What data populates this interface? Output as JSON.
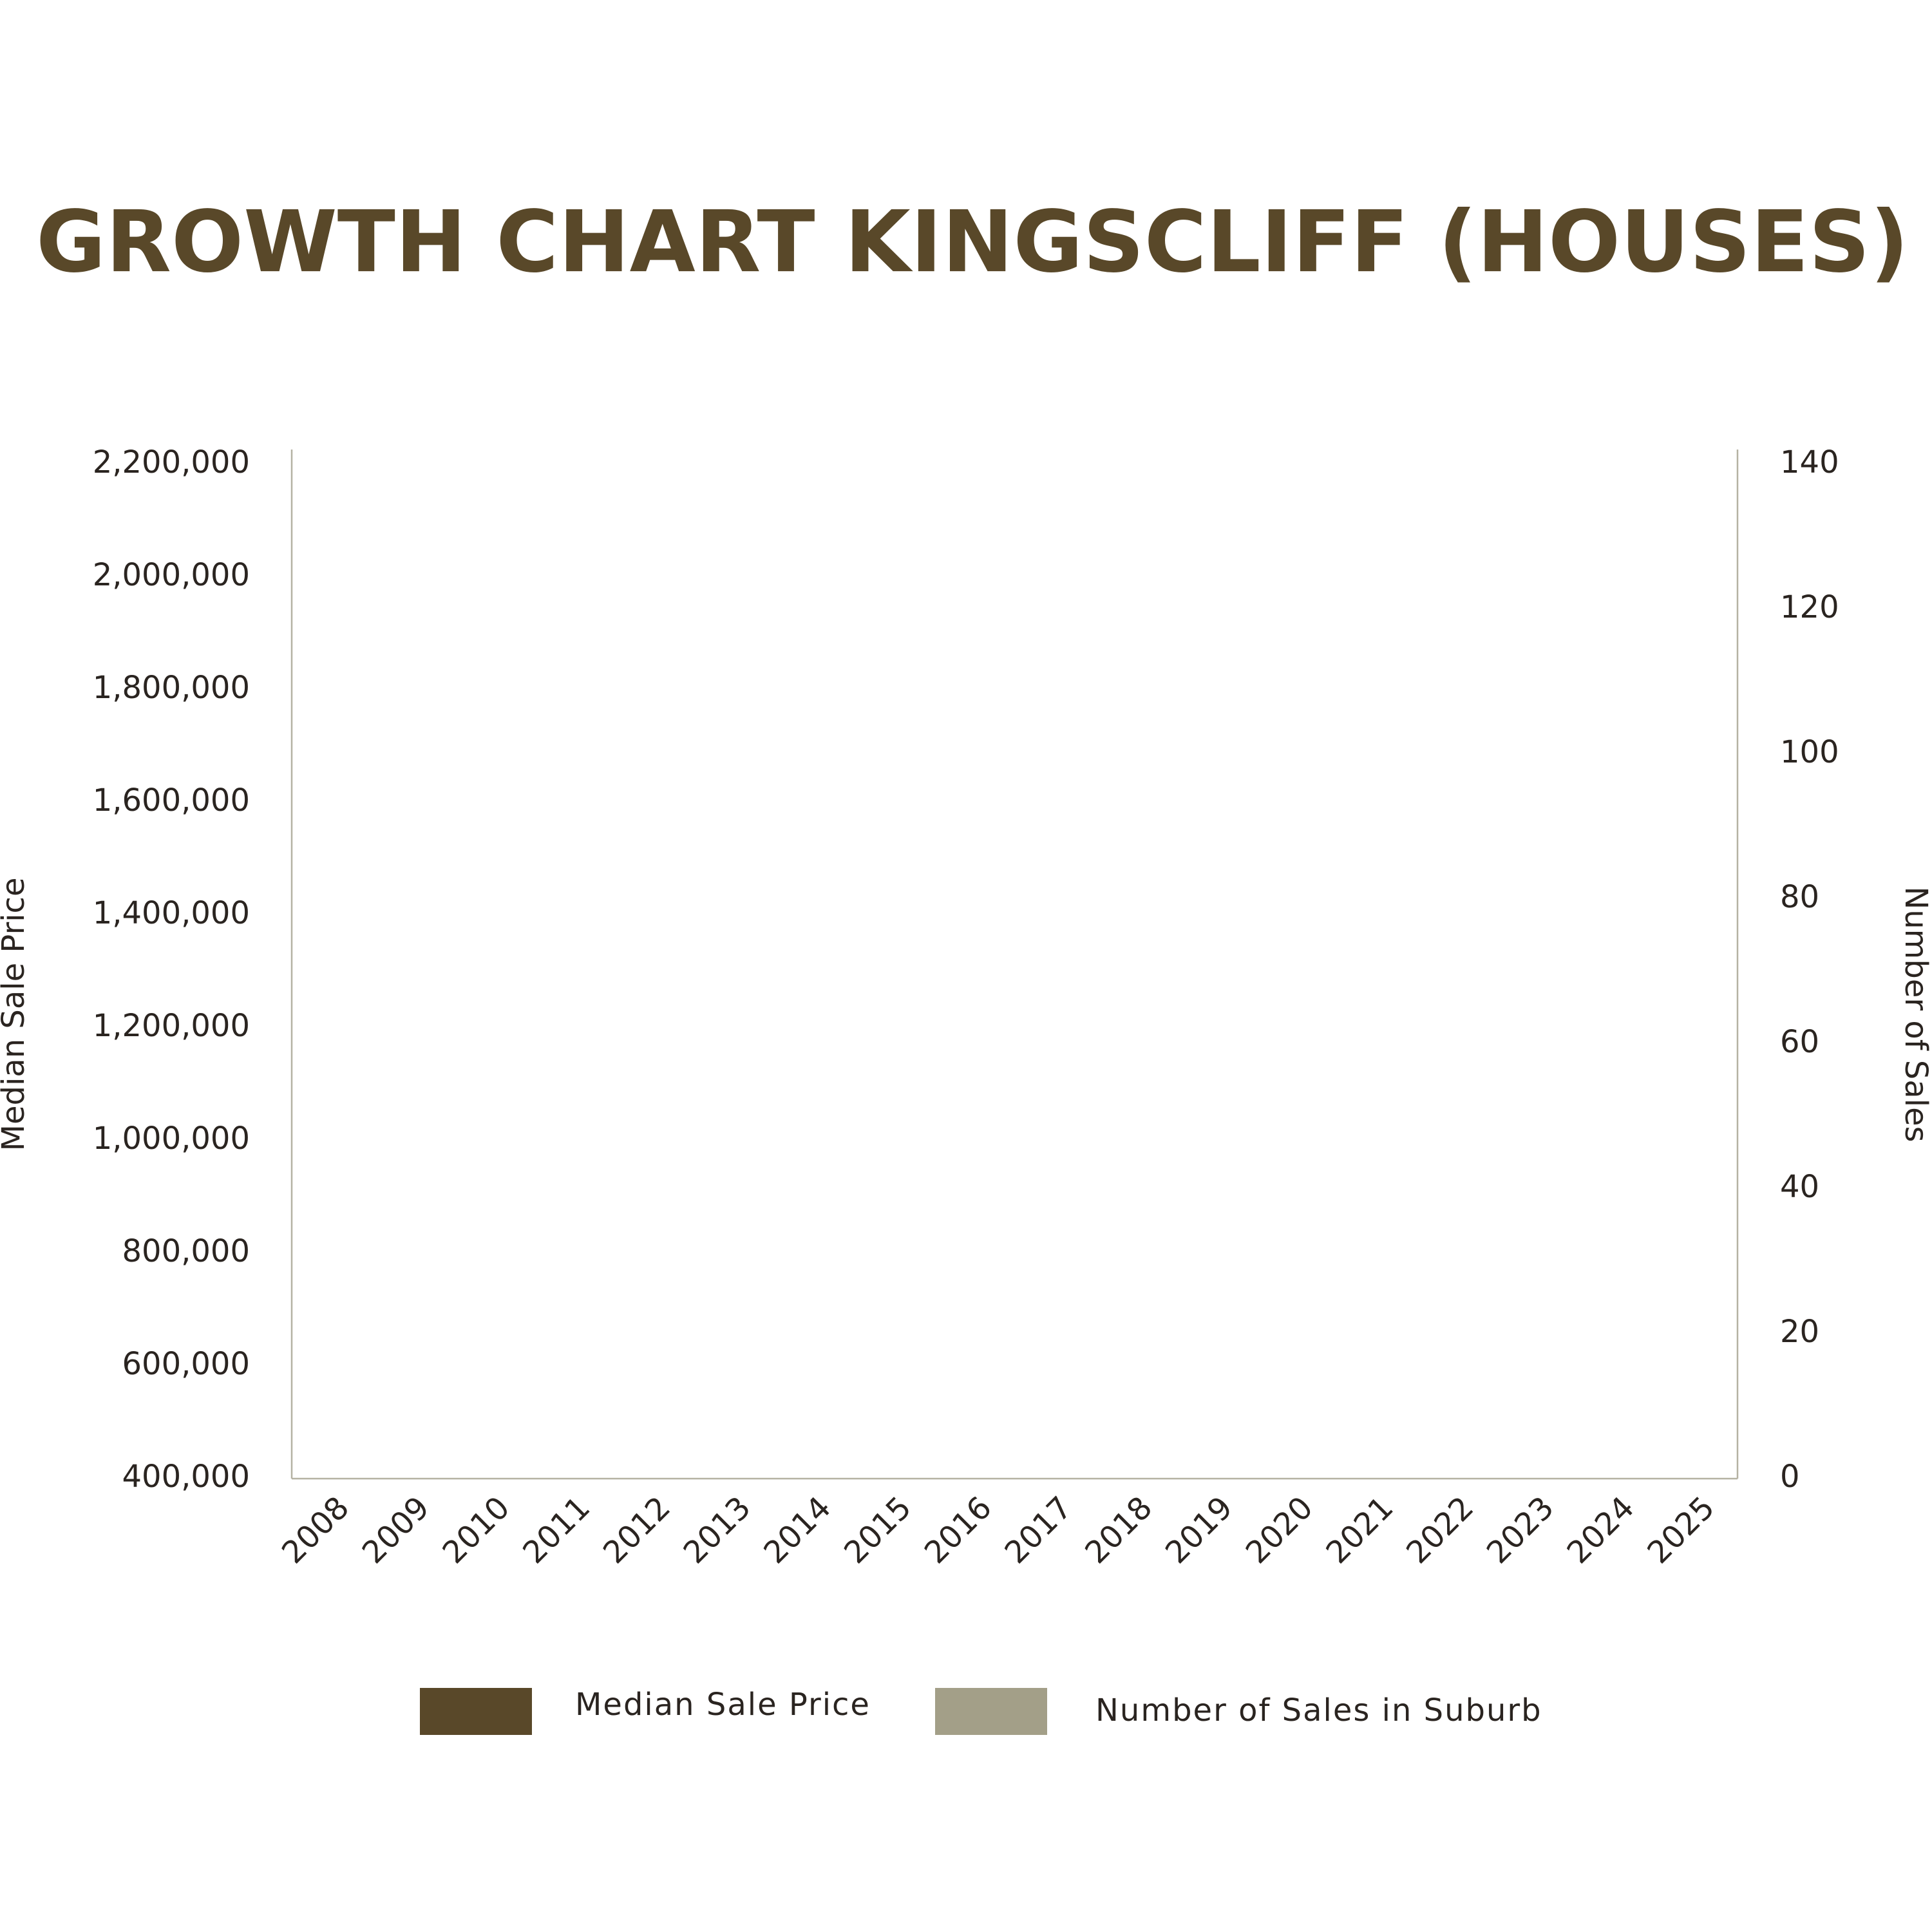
{
  "chart_data": {
    "type": "bar",
    "title": "GROWTH CHART KINGSCLIFF (HOUSES)",
    "y_label": "Median Sale Price",
    "y2_label": "Number of Sales",
    "categories": [
      "2008",
      "2009",
      "2010",
      "2011",
      "2012",
      "2013",
      "2014",
      "2015",
      "2016",
      "2017",
      "2018",
      "2019",
      "2020",
      "2021",
      "2022",
      "2023",
      "2024",
      "2025"
    ],
    "series": [
      {
        "name": "Median Sale Price",
        "color": "#594829",
        "values": [
          null,
          null,
          null,
          null,
          null,
          null,
          null,
          null,
          null,
          null,
          null,
          null,
          null,
          null,
          null,
          null,
          null,
          null
        ]
      },
      {
        "name": "Number of Sales in Suburb",
        "color": "#a39f88",
        "axis": "y2",
        "values": [
          null,
          null,
          null,
          null,
          null,
          null,
          null,
          null,
          null,
          null,
          null,
          null,
          null,
          null,
          null,
          null,
          null,
          null
        ]
      }
    ],
    "ylim": [
      400000,
      2200000
    ],
    "yticks": [
      {
        "value": 400000,
        "label": "400,000"
      },
      {
        "value": 600000,
        "label": "600,000"
      },
      {
        "value": 800000,
        "label": "800,000"
      },
      {
        "value": 1000000,
        "label": "1,000,000"
      },
      {
        "value": 1200000,
        "label": "1,200,000"
      },
      {
        "value": 1400000,
        "label": "1,400,000"
      },
      {
        "value": 1600000,
        "label": "1,600,000"
      },
      {
        "value": 1800000,
        "label": "1,800,000"
      },
      {
        "value": 2000000,
        "label": "2,000,000"
      },
      {
        "value": 2200000,
        "label": "2,200,000"
      }
    ],
    "y2lim": [
      0,
      140
    ],
    "y2ticks": [
      0,
      20,
      40,
      60,
      80,
      100,
      120,
      140
    ],
    "grid": false
  }
}
